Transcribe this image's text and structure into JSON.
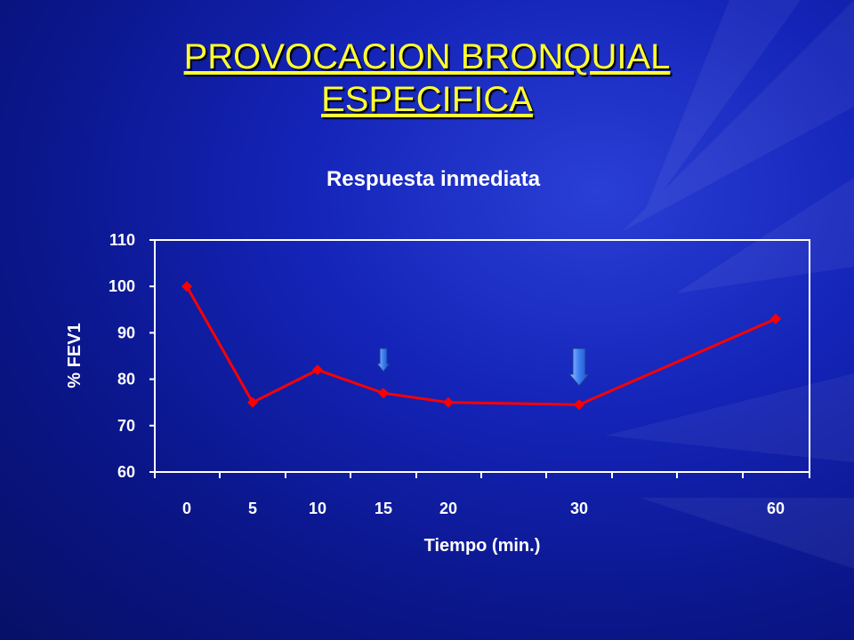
{
  "slide": {
    "title_line1": "PROVOCACION BRONQUIAL",
    "title_line2": "ESPECIFICA",
    "title_color": "#ffff33",
    "background_color": "#1424b8"
  },
  "chart_data": {
    "type": "line",
    "title": "Respuesta inmediata",
    "xlabel": "Tiempo (min.)",
    "ylabel": "% FEV1",
    "ylim": [
      60,
      110
    ],
    "y_ticks": [
      60,
      70,
      80,
      90,
      100,
      110
    ],
    "x_tick_labels": [
      "0",
      "5",
      "10",
      "15",
      "20",
      "30",
      "60"
    ],
    "grid": false,
    "series": [
      {
        "color": "#ff0000",
        "marker": "diamond",
        "points": [
          {
            "x": 0,
            "y": 100
          },
          {
            "x": 5,
            "y": 75
          },
          {
            "x": 10,
            "y": 82
          },
          {
            "x": 15,
            "y": 77
          },
          {
            "x": 20,
            "y": 75
          },
          {
            "x": 30,
            "y": 74.5
          },
          {
            "x": 60,
            "y": 93
          }
        ]
      }
    ],
    "annotations": [
      {
        "type": "down-arrow",
        "x": 15,
        "size": "small",
        "color": "#3b7df0"
      },
      {
        "type": "down-arrow",
        "x": 30,
        "size": "large",
        "color": "#3b7df0"
      }
    ]
  }
}
